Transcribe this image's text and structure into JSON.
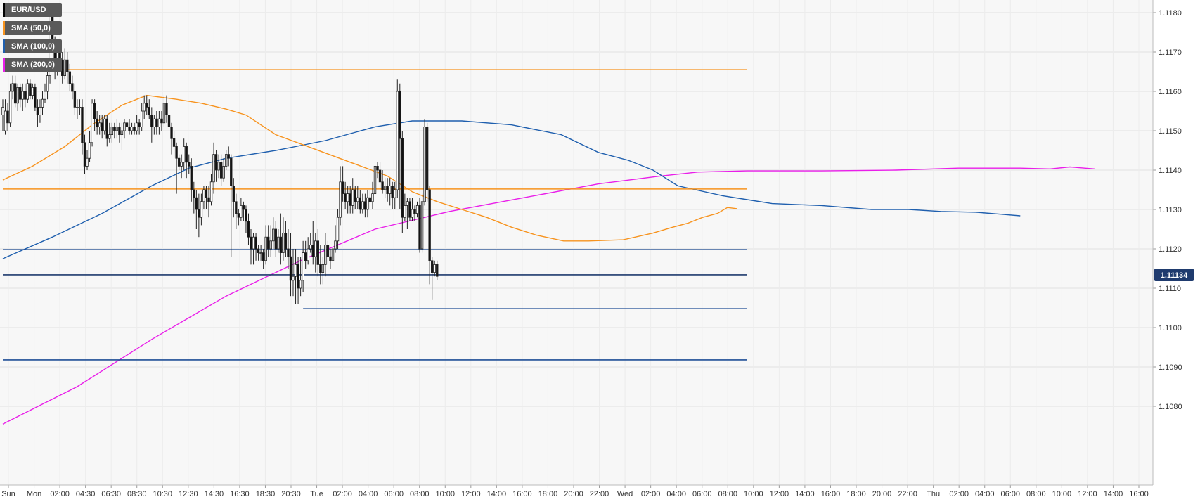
{
  "chart_data": {
    "type": "candlestick",
    "symbol": "EUR/USD",
    "legend": [
      {
        "label": "EUR/USD",
        "color": "#000000"
      },
      {
        "label": "SMA (50,0)",
        "color": "#f7931e"
      },
      {
        "label": "SMA (100,0)",
        "color": "#1f5fae"
      },
      {
        "label": "SMA (200,0)",
        "color": "#e91ee9"
      }
    ],
    "ylim": [
      1.1072,
      1.1184
    ],
    "y_ticks": [
      "1.1080",
      "1.1090",
      "1.1100",
      "1.1110",
      "1.1120",
      "1.1130",
      "1.1140",
      "1.1150",
      "1.1160",
      "1.1170",
      "1.1180"
    ],
    "x_ticks": [
      "Sun",
      "Mon",
      "02:00",
      "04:30",
      "06:30",
      "08:30",
      "10:30",
      "12:30",
      "14:30",
      "16:30",
      "18:30",
      "20:30",
      "Tue",
      "02:00",
      "04:00",
      "06:00",
      "08:00",
      "10:00",
      "12:00",
      "14:00",
      "16:00",
      "18:00",
      "20:00",
      "22:00",
      "Wed",
      "02:00",
      "04:00",
      "06:00",
      "08:00",
      "10:00",
      "12:00",
      "14:00",
      "16:00",
      "18:00",
      "20:00",
      "22:00",
      "Thu",
      "02:00",
      "04:00",
      "06:00",
      "08:00",
      "10:00",
      "12:00",
      "14:00",
      "16:00"
    ],
    "last_price": "1.11134",
    "last_price_value": 1.11134,
    "horizontal_levels": [
      {
        "value": 1.11655,
        "color": "#f7931e",
        "from_candle": 0,
        "to_candle": 300
      },
      {
        "value": 1.11352,
        "color": "#f7931e",
        "from_candle": 0,
        "to_candle": 300
      },
      {
        "value": 1.11198,
        "color": "#1f4e96",
        "from_candle": 0,
        "to_candle": 300
      },
      {
        "value": 1.11048,
        "color": "#1f4e96",
        "from_candle": 121,
        "to_candle": 300
      },
      {
        "value": 1.10918,
        "color": "#1f4e96",
        "from_candle": 0,
        "to_candle": 300
      },
      {
        "value": 1.11134,
        "color": "#1f3b6e",
        "from_candle": 0,
        "to_candle": 300
      }
    ],
    "candles": [
      [
        1.1154,
        1.1156,
        1.115,
        1.1158
      ],
      [
        1.115,
        1.1155,
        1.1149,
        1.1158
      ],
      [
        1.1155,
        1.1152,
        1.115,
        1.1157
      ],
      [
        1.1152,
        1.116,
        1.1151,
        1.1162
      ],
      [
        1.116,
        1.1162,
        1.1158,
        1.1164
      ],
      [
        1.1162,
        1.1157,
        1.1156,
        1.1164
      ],
      [
        1.1157,
        1.1161,
        1.1155,
        1.1162
      ],
      [
        1.1161,
        1.1158,
        1.1156,
        1.1162
      ],
      [
        1.1158,
        1.116,
        1.1155,
        1.1162
      ],
      [
        1.116,
        1.1158,
        1.1156,
        1.1162
      ],
      [
        1.1158,
        1.1162,
        1.1157,
        1.1163
      ],
      [
        1.1162,
        1.1159,
        1.1158,
        1.1163
      ],
      [
        1.1159,
        1.1161,
        1.1158,
        1.1162
      ],
      [
        1.1161,
        1.1156,
        1.1155,
        1.1162
      ],
      [
        1.1156,
        1.1154,
        1.1151,
        1.1158
      ],
      [
        1.1154,
        1.1156,
        1.1152,
        1.1158
      ],
      [
        1.1156,
        1.1158,
        1.1154,
        1.116
      ],
      [
        1.1158,
        1.116,
        1.1157,
        1.1162
      ],
      [
        1.116,
        1.1164,
        1.1158,
        1.1168
      ],
      [
        1.1164,
        1.1179,
        1.1162,
        1.118
      ],
      [
        1.1179,
        1.1173,
        1.117,
        1.118
      ],
      [
        1.1173,
        1.1165,
        1.1163,
        1.1174
      ],
      [
        1.1165,
        1.117,
        1.1164,
        1.1172
      ],
      [
        1.117,
        1.1168,
        1.1166,
        1.1172
      ],
      [
        1.1168,
        1.1164,
        1.1162,
        1.117
      ],
      [
        1.1164,
        1.1168,
        1.1163,
        1.1171
      ],
      [
        1.1168,
        1.1165,
        1.1162,
        1.117
      ],
      [
        1.1165,
        1.1162,
        1.116,
        1.1167
      ],
      [
        1.1162,
        1.116,
        1.1158,
        1.1164
      ],
      [
        1.116,
        1.1156,
        1.1154,
        1.1162
      ],
      [
        1.1156,
        1.1156,
        1.1153,
        1.1158
      ],
      [
        1.1156,
        1.1156,
        1.1154,
        1.1158
      ],
      [
        1.1156,
        1.1147,
        1.1144,
        1.1158
      ],
      [
        1.1147,
        1.1141,
        1.1139,
        1.1149
      ],
      [
        1.1141,
        1.1143,
        1.114,
        1.1145
      ],
      [
        1.1143,
        1.1147,
        1.1142,
        1.115
      ],
      [
        1.1147,
        1.1157,
        1.1146,
        1.1158
      ],
      [
        1.1157,
        1.1153,
        1.115,
        1.1158
      ],
      [
        1.1153,
        1.1151,
        1.1149,
        1.1155
      ],
      [
        1.1151,
        1.1152,
        1.1149,
        1.1154
      ],
      [
        1.1152,
        1.115,
        1.1148,
        1.1154
      ],
      [
        1.115,
        1.1153,
        1.1149,
        1.1154
      ],
      [
        1.1153,
        1.1148,
        1.1146,
        1.1154
      ],
      [
        1.1148,
        1.1149,
        1.1147,
        1.1152
      ],
      [
        1.1149,
        1.1151,
        1.1147,
        1.1152
      ],
      [
        1.1151,
        1.115,
        1.1148,
        1.1152
      ],
      [
        1.115,
        1.1151,
        1.1148,
        1.1153
      ],
      [
        1.1151,
        1.1149,
        1.1147,
        1.1152
      ],
      [
        1.1149,
        1.115,
        1.1145,
        1.1152
      ],
      [
        1.115,
        1.1152,
        1.1148,
        1.1153
      ],
      [
        1.1152,
        1.1151,
        1.1149,
        1.1153
      ],
      [
        1.1151,
        1.115,
        1.1149,
        1.1153
      ],
      [
        1.115,
        1.1151,
        1.1149,
        1.1152
      ],
      [
        1.1151,
        1.115,
        1.1149,
        1.1152
      ],
      [
        1.115,
        1.1152,
        1.1149,
        1.1154
      ],
      [
        1.1152,
        1.1151,
        1.1149,
        1.1153
      ],
      [
        1.1151,
        1.1155,
        1.115,
        1.1157
      ],
      [
        1.1155,
        1.1157,
        1.1153,
        1.1159
      ],
      [
        1.1157,
        1.1156,
        1.1154,
        1.1159
      ],
      [
        1.1156,
        1.1154,
        1.1153,
        1.1158
      ],
      [
        1.1154,
        1.1151,
        1.1147,
        1.1156
      ],
      [
        1.1151,
        1.1153,
        1.1149,
        1.1154
      ],
      [
        1.1153,
        1.1151,
        1.1149,
        1.1155
      ],
      [
        1.1151,
        1.1153,
        1.1149,
        1.1155
      ],
      [
        1.1153,
        1.1152,
        1.115,
        1.1155
      ],
      [
        1.1152,
        1.1157,
        1.1151,
        1.1159
      ],
      [
        1.1157,
        1.1154,
        1.1152,
        1.1159
      ],
      [
        1.1154,
        1.1151,
        1.1149,
        1.1158
      ],
      [
        1.1151,
        1.1148,
        1.1144,
        1.1152
      ],
      [
        1.1148,
        1.1146,
        1.1143,
        1.115
      ],
      [
        1.1146,
        1.1143,
        1.1134,
        1.1147
      ],
      [
        1.1143,
        1.1141,
        1.114,
        1.1144
      ],
      [
        1.1141,
        1.1142,
        1.1138,
        1.1144
      ],
      [
        1.1142,
        1.1146,
        1.114,
        1.1148
      ],
      [
        1.1146,
        1.1142,
        1.1138,
        1.1147
      ],
      [
        1.1142,
        1.1141,
        1.1139,
        1.1144
      ],
      [
        1.1141,
        1.1135,
        1.1132,
        1.1143
      ],
      [
        1.1135,
        1.1133,
        1.1129,
        1.1137
      ],
      [
        1.1133,
        1.113,
        1.1125,
        1.1135
      ],
      [
        1.113,
        1.1128,
        1.1123,
        1.1134
      ],
      [
        1.1128,
        1.1132,
        1.1126,
        1.1134
      ],
      [
        1.1132,
        1.1135,
        1.113,
        1.1136
      ],
      [
        1.1135,
        1.1133,
        1.113,
        1.1136
      ],
      [
        1.1133,
        1.1132,
        1.1128,
        1.1136
      ],
      [
        1.1132,
        1.1137,
        1.1131,
        1.1139
      ],
      [
        1.1137,
        1.1144,
        1.1134,
        1.1147
      ],
      [
        1.1144,
        1.114,
        1.1137,
        1.1145
      ],
      [
        1.114,
        1.1142,
        1.1138,
        1.1144
      ],
      [
        1.1142,
        1.1138,
        1.1136,
        1.1144
      ],
      [
        1.1138,
        1.1141,
        1.1137,
        1.1143
      ],
      [
        1.1141,
        1.1144,
        1.114,
        1.1145
      ],
      [
        1.1144,
        1.1143,
        1.1141,
        1.1146
      ],
      [
        1.1143,
        1.1136,
        1.1118,
        1.1144
      ],
      [
        1.1136,
        1.1132,
        1.1128,
        1.1138
      ],
      [
        1.1132,
        1.1129,
        1.1125,
        1.1134
      ],
      [
        1.1129,
        1.1128,
        1.1126,
        1.113
      ],
      [
        1.1128,
        1.1131,
        1.1127,
        1.1133
      ],
      [
        1.1131,
        1.113,
        1.1127,
        1.1132
      ],
      [
        1.113,
        1.1127,
        1.1124,
        1.1131
      ],
      [
        1.1127,
        1.1123,
        1.1121,
        1.1129
      ],
      [
        1.1123,
        1.112,
        1.1116,
        1.1125
      ],
      [
        1.112,
        1.1123,
        1.1116,
        1.1124
      ],
      [
        1.1123,
        1.112,
        1.1117,
        1.1124
      ],
      [
        1.112,
        1.1119,
        1.1117,
        1.1121
      ],
      [
        1.1119,
        1.1119,
        1.1117,
        1.1121
      ],
      [
        1.1119,
        1.1117,
        1.1115,
        1.112
      ],
      [
        1.1117,
        1.1123,
        1.1116,
        1.1126
      ],
      [
        1.1123,
        1.112,
        1.1118,
        1.1126
      ],
      [
        1.112,
        1.1122,
        1.1118,
        1.1126
      ],
      [
        1.1122,
        1.1125,
        1.112,
        1.1128
      ],
      [
        1.1125,
        1.112,
        1.1118,
        1.1127
      ],
      [
        1.112,
        1.1123,
        1.1119,
        1.1125
      ],
      [
        1.1123,
        1.1119,
        1.1116,
        1.1129
      ],
      [
        1.1119,
        1.1124,
        1.1117,
        1.1128
      ],
      [
        1.1124,
        1.112,
        1.1118,
        1.1127
      ],
      [
        1.112,
        1.1118,
        1.1115,
        1.1125
      ],
      [
        1.1118,
        1.1112,
        1.1108,
        1.1124
      ],
      [
        1.1112,
        1.1113,
        1.1108,
        1.112
      ],
      [
        1.1113,
        1.1116,
        1.1106,
        1.112
      ],
      [
        1.1116,
        1.111,
        1.1106,
        1.1118
      ],
      [
        1.111,
        1.1112,
        1.1108,
        1.1118
      ],
      [
        1.1112,
        1.1119,
        1.1109,
        1.1122
      ],
      [
        1.1119,
        1.1117,
        1.1115,
        1.1122
      ],
      [
        1.1117,
        1.112,
        1.1116,
        1.1123
      ],
      [
        1.112,
        1.1121,
        1.1119,
        1.1124
      ],
      [
        1.1121,
        1.1118,
        1.1116,
        1.1127
      ],
      [
        1.1118,
        1.1122,
        1.1114,
        1.1124
      ],
      [
        1.1122,
        1.1116,
        1.1113,
        1.1125
      ],
      [
        1.1116,
        1.1114,
        1.1111,
        1.1121
      ],
      [
        1.1114,
        1.1116,
        1.1111,
        1.1118
      ],
      [
        1.1116,
        1.1121,
        1.1113,
        1.1124
      ],
      [
        1.1121,
        1.1118,
        1.1116,
        1.1122
      ],
      [
        1.1118,
        1.1117,
        1.1115,
        1.112
      ],
      [
        1.1117,
        1.112,
        1.1116,
        1.1123
      ],
      [
        1.112,
        1.1122,
        1.1119,
        1.1126
      ],
      [
        1.1122,
        1.1128,
        1.112,
        1.113
      ],
      [
        1.1128,
        1.1137,
        1.1126,
        1.1141
      ],
      [
        1.1137,
        1.1134,
        1.1132,
        1.1141
      ],
      [
        1.1134,
        1.1132,
        1.113,
        1.1137
      ],
      [
        1.1132,
        1.1134,
        1.1129,
        1.1136
      ],
      [
        1.1134,
        1.1131,
        1.1129,
        1.1136
      ],
      [
        1.1131,
        1.1135,
        1.1129,
        1.1138
      ],
      [
        1.1135,
        1.1132,
        1.113,
        1.1136
      ],
      [
        1.1132,
        1.1133,
        1.113,
        1.1136
      ],
      [
        1.1133,
        1.113,
        1.1129,
        1.1135
      ],
      [
        1.113,
        1.1132,
        1.1129,
        1.1134
      ],
      [
        1.1132,
        1.113,
        1.1128,
        1.1134
      ],
      [
        1.113,
        1.1133,
        1.1128,
        1.1135
      ],
      [
        1.1133,
        1.1132,
        1.113,
        1.1135
      ],
      [
        1.1132,
        1.1134,
        1.113,
        1.1137
      ],
      [
        1.1134,
        1.1141,
        1.1132,
        1.1143
      ],
      [
        1.1141,
        1.114,
        1.1138,
        1.1142
      ],
      [
        1.114,
        1.1137,
        1.1135,
        1.1142
      ],
      [
        1.1137,
        1.1135,
        1.1134,
        1.114
      ],
      [
        1.1135,
        1.1136,
        1.1133,
        1.1138
      ],
      [
        1.1136,
        1.1134,
        1.1132,
        1.1138
      ],
      [
        1.1134,
        1.1136,
        1.1131,
        1.1138
      ],
      [
        1.1136,
        1.1133,
        1.113,
        1.1137
      ],
      [
        1.1133,
        1.1135,
        1.113,
        1.1137
      ],
      [
        1.1135,
        1.116,
        1.1133,
        1.1163
      ],
      [
        1.116,
        1.1148,
        1.113,
        1.1162
      ],
      [
        1.1148,
        1.1128,
        1.1124,
        1.115
      ],
      [
        1.1128,
        1.1131,
        1.1127,
        1.1134
      ],
      [
        1.1131,
        1.1132,
        1.1125,
        1.1133
      ],
      [
        1.1132,
        1.1128,
        1.1127,
        1.1133
      ],
      [
        1.1128,
        1.113,
        1.1127,
        1.1133
      ],
      [
        1.113,
        1.1129,
        1.1127,
        1.1131
      ],
      [
        1.1129,
        1.1131,
        1.1128,
        1.1132
      ],
      [
        1.1131,
        1.112,
        1.1119,
        1.1133
      ],
      [
        1.112,
        1.1132,
        1.1119,
        1.1134
      ],
      [
        1.1132,
        1.1151,
        1.1131,
        1.1153
      ],
      [
        1.1151,
        1.1135,
        1.1132,
        1.1152
      ],
      [
        1.1135,
        1.1117,
        1.1111,
        1.1136
      ],
      [
        1.1117,
        1.1114,
        1.1107,
        1.1118
      ],
      [
        1.1114,
        1.1116,
        1.1113,
        1.1117
      ],
      [
        1.1116,
        1.1113,
        1.1112,
        1.1117
      ]
    ],
    "sma50": [
      [
        0,
        1.11375
      ],
      [
        12,
        1.1141
      ],
      [
        25,
        1.1146
      ],
      [
        36,
        1.11515
      ],
      [
        48,
        1.11565
      ],
      [
        58,
        1.1159
      ],
      [
        70,
        1.1158
      ],
      [
        80,
        1.1157
      ],
      [
        90,
        1.11555
      ],
      [
        98,
        1.1154
      ],
      [
        110,
        1.1149
      ],
      [
        125,
        1.11455
      ],
      [
        140,
        1.1142
      ],
      [
        155,
        1.11385
      ],
      [
        165,
        1.11345
      ],
      [
        175,
        1.1132
      ],
      [
        185,
        1.113
      ],
      [
        195,
        1.1128
      ],
      [
        205,
        1.11255
      ],
      [
        215,
        1.11235
      ],
      [
        226,
        1.1122
      ],
      [
        236,
        1.1122
      ],
      [
        250,
        1.11223
      ],
      [
        262,
        1.1124
      ],
      [
        270,
        1.11255
      ],
      [
        276,
        1.11265
      ],
      [
        282,
        1.1128
      ],
      [
        288,
        1.1129
      ],
      [
        292,
        1.11305
      ],
      [
        296,
        1.11302
      ]
    ],
    "sma100": [
      [
        0,
        1.11175
      ],
      [
        20,
        1.1123
      ],
      [
        40,
        1.1129
      ],
      [
        60,
        1.1136
      ],
      [
        75,
        1.11405
      ],
      [
        90,
        1.1143
      ],
      [
        110,
        1.1145
      ],
      [
        130,
        1.11475
      ],
      [
        150,
        1.1151
      ],
      [
        165,
        1.11525
      ],
      [
        185,
        1.11525
      ],
      [
        205,
        1.11515
      ],
      [
        225,
        1.1149
      ],
      [
        240,
        1.11445
      ],
      [
        252,
        1.11425
      ],
      [
        262,
        1.114
      ],
      [
        272,
        1.1136
      ],
      [
        290,
        1.11335
      ],
      [
        300,
        1.11325
      ],
      [
        310,
        1.11315
      ],
      [
        330,
        1.1131
      ],
      [
        350,
        1.113
      ],
      [
        365,
        1.113
      ],
      [
        378,
        1.11295
      ],
      [
        392,
        1.11293
      ],
      [
        402,
        1.11288
      ],
      [
        410,
        1.11284
      ]
    ],
    "sma200": [
      [
        0,
        1.10755
      ],
      [
        30,
        1.1085
      ],
      [
        60,
        1.1097
      ],
      [
        90,
        1.1108
      ],
      [
        120,
        1.1117
      ],
      [
        150,
        1.1125
      ],
      [
        180,
        1.11295
      ],
      [
        210,
        1.1133
      ],
      [
        240,
        1.11365
      ],
      [
        265,
        1.11385
      ],
      [
        280,
        1.11395
      ],
      [
        300,
        1.11398
      ],
      [
        330,
        1.11398
      ],
      [
        360,
        1.114
      ],
      [
        385,
        1.11405
      ],
      [
        410,
        1.11405
      ],
      [
        422,
        1.11403
      ],
      [
        430,
        1.11408
      ],
      [
        440,
        1.11403
      ]
    ]
  }
}
